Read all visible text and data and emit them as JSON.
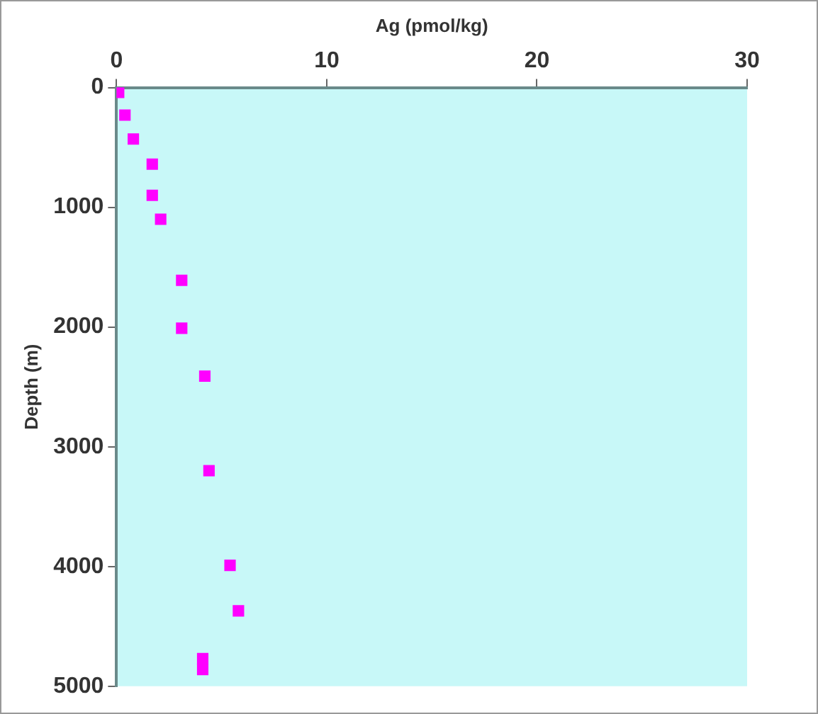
{
  "chart_data": {
    "type": "scatter",
    "xlabel": "Ag (pmol/kg)",
    "ylabel": "Depth (m)",
    "x": [
      0.1,
      0.4,
      0.8,
      1.7,
      1.7,
      2.1,
      3.1,
      3.1,
      4.2,
      4.4,
      5.4,
      5.8,
      4.1,
      4.1
    ],
    "series": [
      {
        "color": "#ff00ff",
        "values": [
          40,
          230,
          430,
          640,
          900,
          1100,
          1610,
          2010,
          2410,
          3200,
          3990,
          4370,
          4770,
          4860
        ]
      }
    ],
    "xlim": [
      0,
      30
    ],
    "xticks": [
      0,
      10,
      20,
      30
    ],
    "ylim": [
      5000,
      0
    ],
    "yticks": [
      0,
      1000,
      2000,
      3000,
      4000,
      5000
    ],
    "grid": false,
    "legend": false,
    "marker": "square"
  }
}
